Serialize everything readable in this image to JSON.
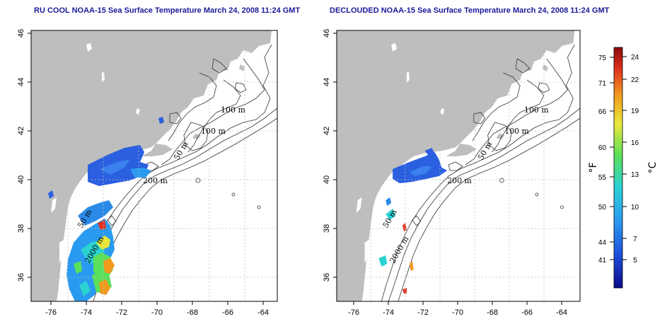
{
  "panels": [
    {
      "title": "RU COOL NOAA-15 Sea Surface Temperature March 24, 2008 11:24 GMT",
      "contour_labels": [
        "100 m",
        "100 m",
        "50 m",
        "200 m",
        "50 m",
        "2000 m"
      ]
    },
    {
      "title": "DECLOUDED NOAA-15 Sea Surface Temperature March 24, 2008 11:24 GMT",
      "contour_labels": [
        "100 m",
        "100 m",
        "50 m",
        "200 m",
        "50 m",
        "2000 m"
      ]
    }
  ],
  "axes": {
    "lon_range": [
      -77,
      -63
    ],
    "lat_range": [
      35,
      46
    ],
    "x_ticks": [
      "-76",
      "-74",
      "-72",
      "-70",
      "-68",
      "-66",
      "-64"
    ],
    "y_ticks": [
      "36",
      "38",
      "40",
      "42",
      "44",
      "46"
    ]
  },
  "colorbar": {
    "fahrenheit_label": "°F",
    "celsius_label": "°C",
    "fahrenheit_ticks": [
      "75",
      "71",
      "66",
      "60",
      "55",
      "50",
      "44",
      "41"
    ],
    "celsius_ticks": [
      "24",
      "22",
      "19",
      "16",
      "13",
      "10",
      "7",
      "5"
    ],
    "colors": [
      "#0a0a8c",
      "#1e50dc",
      "#2a9af0",
      "#2ad2d2",
      "#5ae05a",
      "#e8e83a",
      "#f29a1e",
      "#e0321e",
      "#8c0a0a"
    ]
  }
}
